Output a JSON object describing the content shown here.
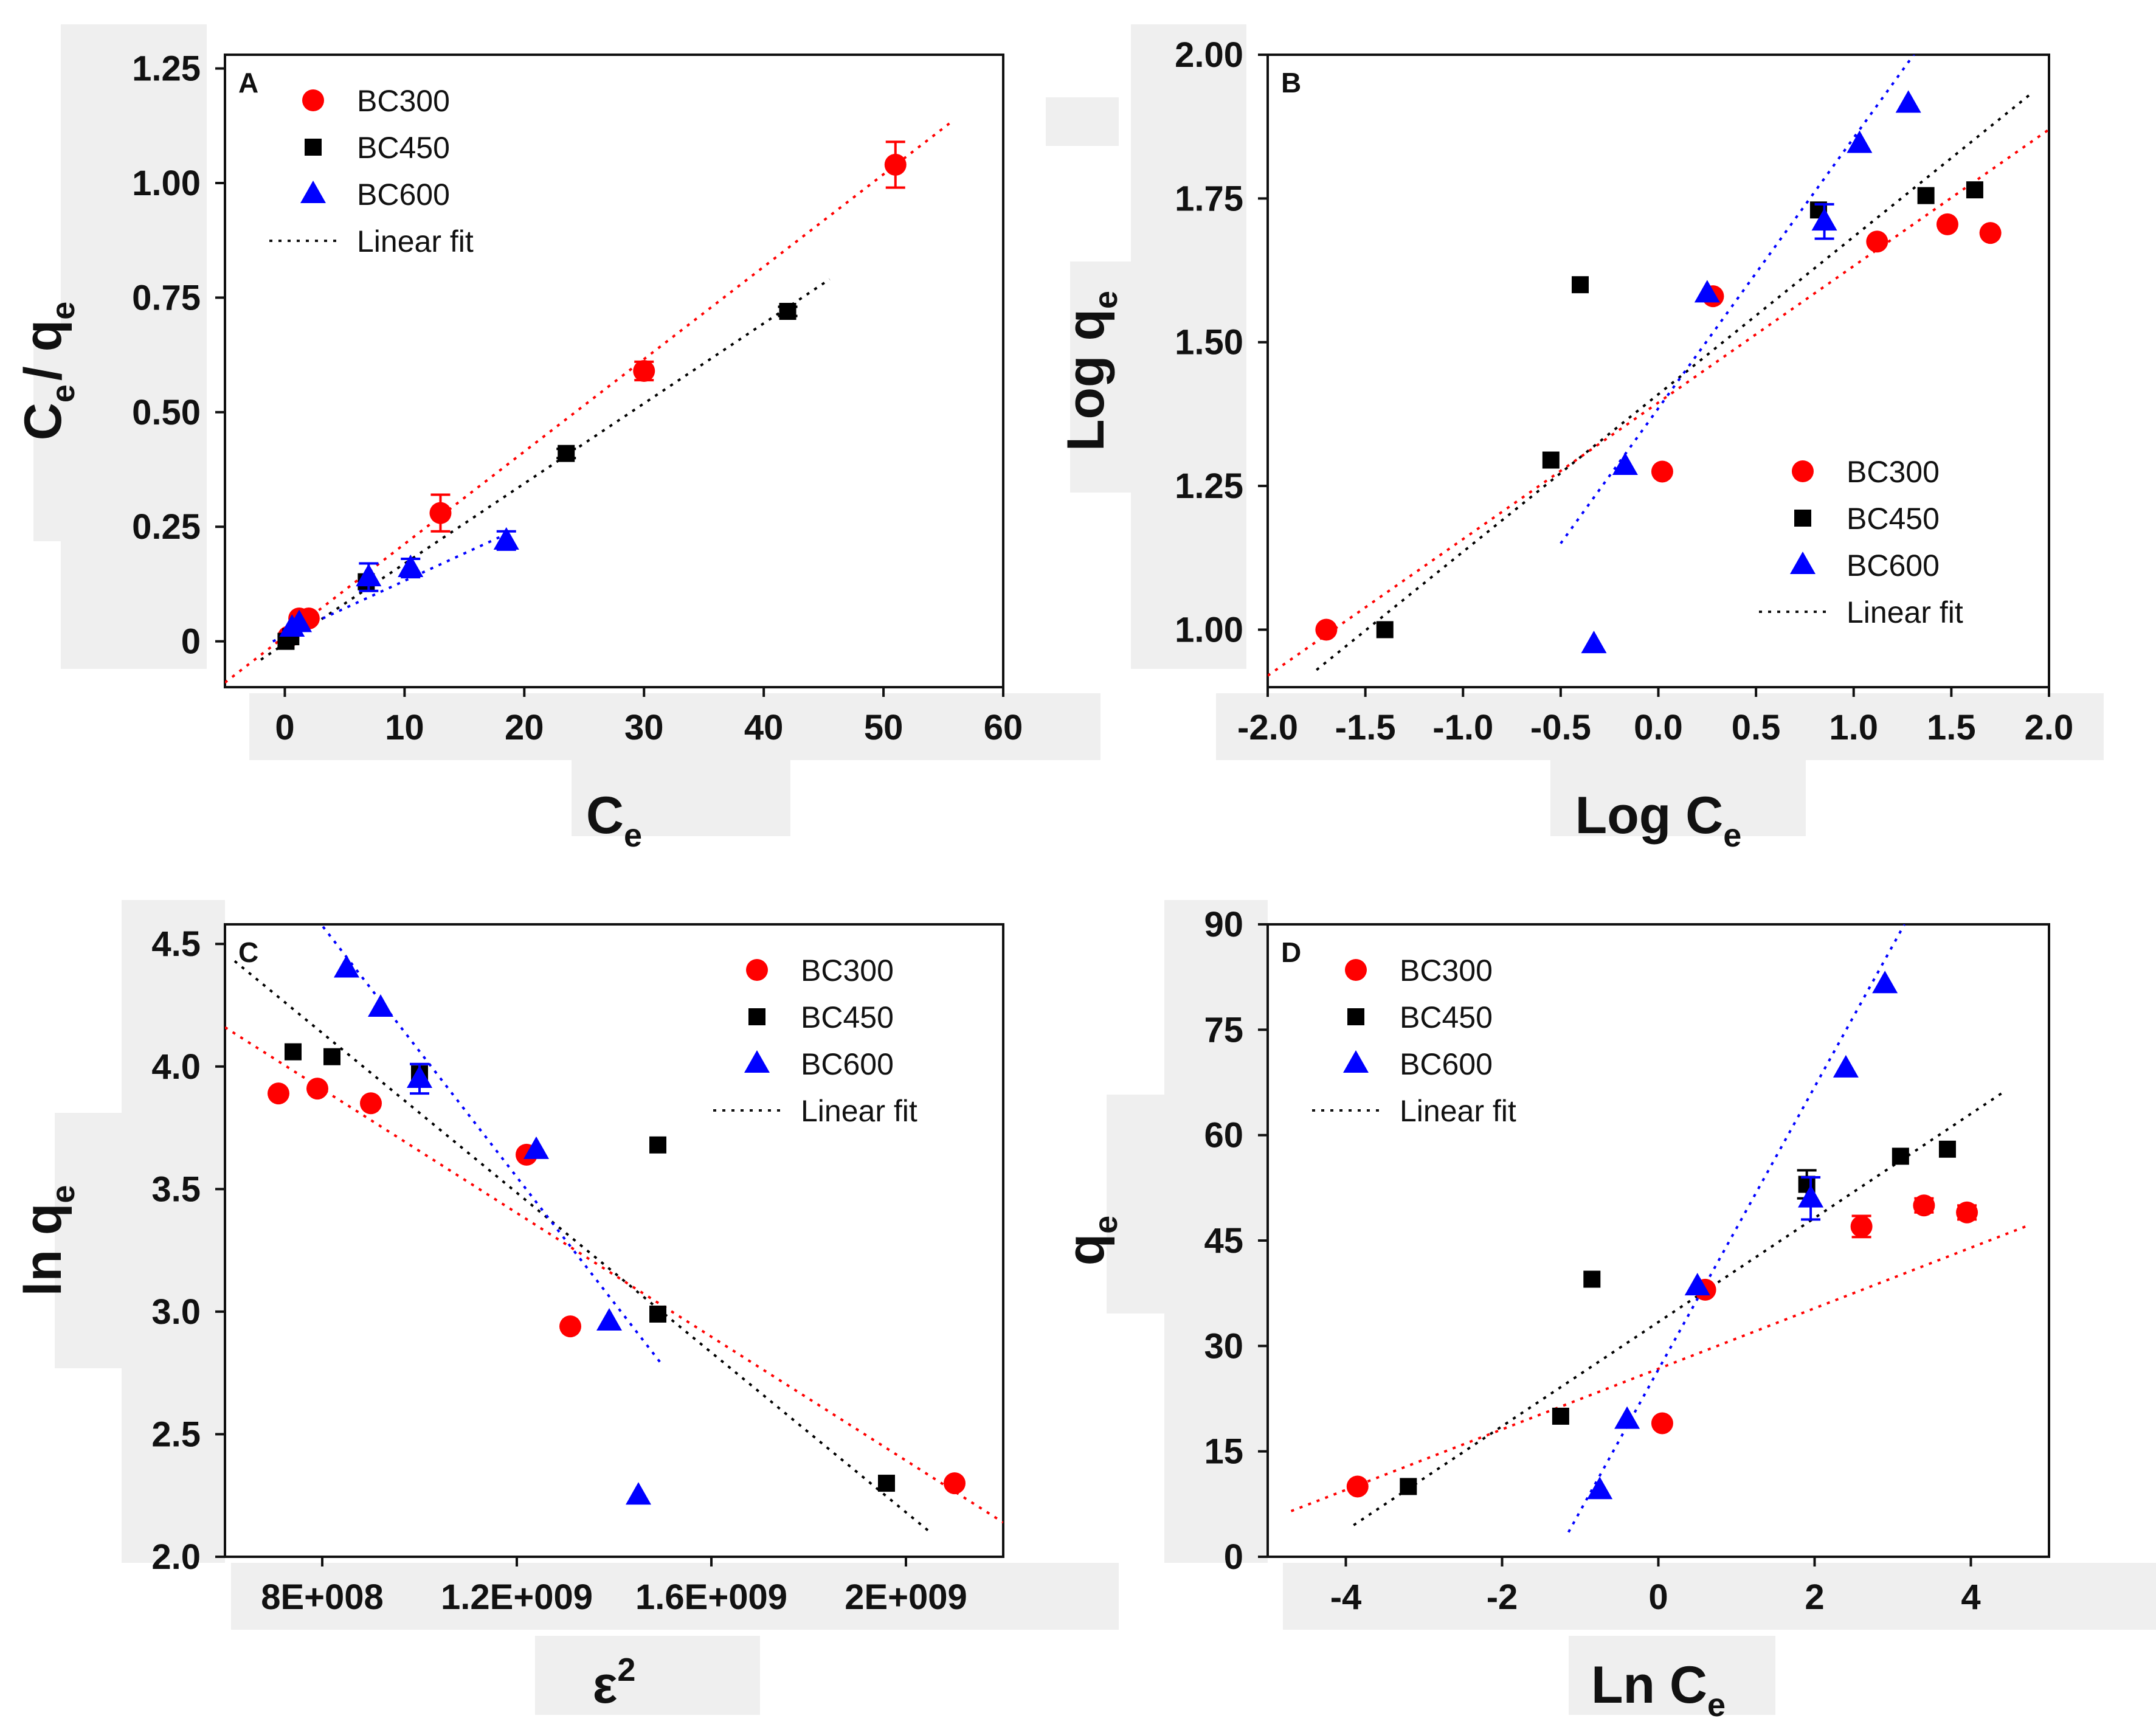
{
  "colors": {
    "BC300": "#ff0000",
    "BC450": "#000000",
    "BC600": "#0000ff",
    "label_backdrop": "#efefef"
  },
  "legend": [
    "BC300",
    "BC450",
    "BC600",
    "Linear fit"
  ],
  "chart_data": [
    {
      "type": "scatter",
      "panel": "A",
      "title": "",
      "xlabel": {
        "main": "C",
        "sub": "e"
      },
      "ylabel": {
        "main": "C",
        "sub": "e",
        "main2": "/ q",
        "sub2": "e"
      },
      "xlim": [
        -5,
        60
      ],
      "ylim": [
        -0.1,
        1.28
      ],
      "xticks": [
        0,
        10,
        20,
        30,
        40,
        50,
        60
      ],
      "xtick_labels": [
        "0",
        "10",
        "20",
        "30",
        "40",
        "50",
        "60"
      ],
      "yticks": [
        0,
        0.25,
        0.5,
        0.75,
        1.0,
        1.25
      ],
      "ytick_labels": [
        "0",
        "0.25",
        "0.50",
        "0.75",
        "1.00",
        "1.25"
      ],
      "legend_position": "top-left",
      "series": [
        {
          "name": "BC300",
          "marker": "circle",
          "points": [
            [
              0.3,
              0.01
            ],
            [
              1.2,
              0.05
            ],
            [
              2.0,
              0.05
            ],
            [
              13.0,
              0.28
            ],
            [
              30.0,
              0.59
            ],
            [
              51.0,
              1.04
            ]
          ],
          "errors": [
            0,
            0,
            0,
            0.04,
            0.02,
            0.05
          ]
        },
        {
          "name": "BC450",
          "marker": "square",
          "points": [
            [
              0.1,
              0.0
            ],
            [
              0.5,
              0.01
            ],
            [
              6.8,
              0.13
            ],
            [
              23.5,
              0.41
            ],
            [
              42.0,
              0.72
            ]
          ],
          "errors": [
            0,
            0,
            0,
            0.01,
            0.01
          ]
        },
        {
          "name": "BC600",
          "marker": "triangle",
          "points": [
            [
              0.6,
              0.03
            ],
            [
              1.2,
              0.04
            ],
            [
              7.0,
              0.14
            ],
            [
              10.5,
              0.16
            ],
            [
              18.5,
              0.22
            ]
          ],
          "errors": [
            0,
            0,
            0.03,
            0.02,
            0.02
          ]
        }
      ],
      "fits": [
        {
          "series": "BC300",
          "x": [
            -5,
            55.5
          ],
          "y": [
            -0.09,
            1.13
          ]
        },
        {
          "series": "BC450",
          "x": [
            -2,
            45.5
          ],
          "y": [
            -0.04,
            0.79
          ]
        },
        {
          "series": "BC600",
          "x": [
            -1,
            19
          ],
          "y": [
            0.0,
            0.24
          ]
        }
      ]
    },
    {
      "type": "scatter",
      "panel": "B",
      "title": "",
      "xlabel": {
        "main": "Log C",
        "sub": "e"
      },
      "ylabel": {
        "main": "Log q",
        "sub": "e"
      },
      "xlim": [
        -2.0,
        2.0
      ],
      "ylim": [
        0.9,
        2.0
      ],
      "xticks": [
        -2.0,
        -1.5,
        -1.0,
        -0.5,
        0.0,
        0.5,
        1.0,
        1.5,
        2.0
      ],
      "xtick_labels": [
        "-2.0",
        "-1.5",
        "-1.0",
        "-0.5",
        "0.0",
        "0.5",
        "1.0",
        "1.5",
        "2.0"
      ],
      "yticks": [
        1.0,
        1.25,
        1.5,
        1.75,
        2.0
      ],
      "ytick_labels": [
        "1.00",
        "1.25",
        "1.50",
        "1.75",
        "2.00"
      ],
      "legend_position": "bottom-right",
      "series": [
        {
          "name": "BC300",
          "marker": "circle",
          "points": [
            [
              -1.7,
              1.0
            ],
            [
              0.02,
              1.275
            ],
            [
              0.28,
              1.58
            ],
            [
              1.12,
              1.675
            ],
            [
              1.48,
              1.705
            ],
            [
              1.7,
              1.69
            ]
          ],
          "errors": [
            0,
            0,
            0,
            0,
            0,
            0
          ]
        },
        {
          "name": "BC450",
          "marker": "square",
          "points": [
            [
              -1.4,
              1.0
            ],
            [
              -0.55,
              1.295
            ],
            [
              -0.4,
              1.6
            ],
            [
              0.82,
              1.73
            ],
            [
              1.37,
              1.755
            ],
            [
              1.62,
              1.765
            ]
          ],
          "errors": [
            0,
            0,
            0,
            0,
            0,
            0
          ]
        },
        {
          "name": "BC600",
          "marker": "triangle",
          "points": [
            [
              -0.33,
              0.975
            ],
            [
              -0.17,
              1.285
            ],
            [
              0.25,
              1.585
            ],
            [
              0.85,
              1.71
            ],
            [
              1.03,
              1.845
            ],
            [
              1.28,
              1.915
            ]
          ],
          "errors": [
            0,
            0,
            0,
            0.03,
            0,
            0
          ]
        }
      ],
      "fits": [
        {
          "series": "BC300",
          "x": [
            -2.0,
            2.0
          ],
          "y": [
            0.92,
            1.87
          ]
        },
        {
          "series": "BC450",
          "x": [
            -1.75,
            1.9
          ],
          "y": [
            0.93,
            1.93
          ]
        },
        {
          "series": "BC600",
          "x": [
            -0.5,
            1.35
          ],
          "y": [
            1.15,
            2.02
          ]
        }
      ]
    },
    {
      "type": "scatter",
      "panel": "C",
      "title": "",
      "xlabel": {
        "main": "ε",
        "sup": "2"
      },
      "ylabel": {
        "main": "ln q",
        "sub": "e"
      },
      "xlim": [
        600000000,
        2200000000
      ],
      "ylim": [
        2.0,
        4.58
      ],
      "xticks": [
        800000000,
        1200000000,
        1600000000,
        2000000000
      ],
      "xtick_labels": [
        "8E+008",
        "1.2E+009",
        "1.6E+009",
        "2E+009"
      ],
      "yticks": [
        2.0,
        2.5,
        3.0,
        3.5,
        4.0,
        4.5
      ],
      "ytick_labels": [
        "2.0",
        "2.5",
        "3.0",
        "3.5",
        "4.0",
        "4.5"
      ],
      "legend_position": "top-right",
      "series": [
        {
          "name": "BC300",
          "marker": "circle",
          "points": [
            [
              710000000,
              3.89
            ],
            [
              790000000,
              3.91
            ],
            [
              900000000,
              3.85
            ],
            [
              1220000000,
              3.64
            ],
            [
              1310000000,
              2.94
            ],
            [
              2100000000,
              2.3
            ]
          ],
          "errors": [
            0,
            0,
            0,
            0,
            0,
            0
          ]
        },
        {
          "name": "BC450",
          "marker": "square",
          "points": [
            [
              740000000,
              4.06
            ],
            [
              820000000,
              4.04
            ],
            [
              1000000000,
              3.97
            ],
            [
              1490000000,
              3.68
            ],
            [
              1490000000,
              2.99
            ],
            [
              1960000000,
              2.3
            ]
          ],
          "errors": [
            0,
            0,
            0,
            0,
            0,
            0
          ]
        },
        {
          "name": "BC600",
          "marker": "triangle",
          "points": [
            [
              850000000,
              4.4
            ],
            [
              920000000,
              4.24
            ],
            [
              1000000000,
              3.95
            ],
            [
              1240000000,
              3.66
            ],
            [
              1390000000,
              2.96
            ],
            [
              1450000000,
              2.25
            ]
          ],
          "errors": [
            0,
            0,
            0.06,
            0,
            0,
            0
          ]
        }
      ],
      "fits": [
        {
          "series": "BC300",
          "x": [
            600000000,
            2200000000
          ],
          "y": [
            4.16,
            2.14
          ]
        },
        {
          "series": "BC450",
          "x": [
            620000000,
            2050000000
          ],
          "y": [
            4.43,
            2.1
          ]
        },
        {
          "series": "BC600",
          "x": [
            790000000,
            1500000000
          ],
          "y": [
            4.6,
            2.78
          ]
        }
      ]
    },
    {
      "type": "scatter",
      "panel": "D",
      "title": "",
      "xlabel": {
        "main": "Ln C",
        "sub": "e"
      },
      "ylabel": {
        "main": "q",
        "sub": "e"
      },
      "xlim": [
        -5.0,
        5.0
      ],
      "ylim": [
        0,
        90
      ],
      "xticks": [
        -4,
        -2,
        0,
        2,
        4
      ],
      "xtick_labels": [
        "-4",
        "-2",
        "0",
        "2",
        "4"
      ],
      "yticks": [
        0,
        15,
        30,
        45,
        60,
        75,
        90
      ],
      "ytick_labels": [
        "0",
        "15",
        "30",
        "45",
        "60",
        "75",
        "90"
      ],
      "legend_position": "top-left",
      "series": [
        {
          "name": "BC300",
          "marker": "circle",
          "points": [
            [
              -3.85,
              10
            ],
            [
              0.05,
              19
            ],
            [
              0.6,
              38
            ],
            [
              2.6,
              47
            ],
            [
              3.4,
              50
            ],
            [
              3.95,
              49
            ]
          ],
          "errors": [
            0,
            0,
            0,
            1.5,
            1,
            1
          ]
        },
        {
          "name": "BC450",
          "marker": "square",
          "points": [
            [
              -3.2,
              10
            ],
            [
              -1.25,
              20
            ],
            [
              -0.85,
              39.5
            ],
            [
              1.9,
              53
            ],
            [
              3.1,
              57
            ],
            [
              3.7,
              58
            ]
          ],
          "errors": [
            0,
            0,
            0,
            2,
            0,
            0
          ]
        },
        {
          "name": "BC600",
          "marker": "triangle",
          "points": [
            [
              -0.75,
              9.5
            ],
            [
              -0.4,
              19.5
            ],
            [
              0.5,
              38.5
            ],
            [
              1.95,
              51
            ],
            [
              2.4,
              69.5
            ],
            [
              2.9,
              81.5
            ]
          ],
          "errors": [
            0,
            0,
            0,
            3,
            0,
            0
          ]
        }
      ],
      "fits": [
        {
          "series": "BC300",
          "x": [
            -4.7,
            4.7
          ],
          "y": [
            6.5,
            47
          ]
        },
        {
          "series": "BC450",
          "x": [
            -3.9,
            4.4
          ],
          "y": [
            4.5,
            66
          ]
        },
        {
          "series": "BC600",
          "x": [
            -1.15,
            3.15
          ],
          "y": [
            3.5,
            90
          ]
        }
      ]
    }
  ]
}
